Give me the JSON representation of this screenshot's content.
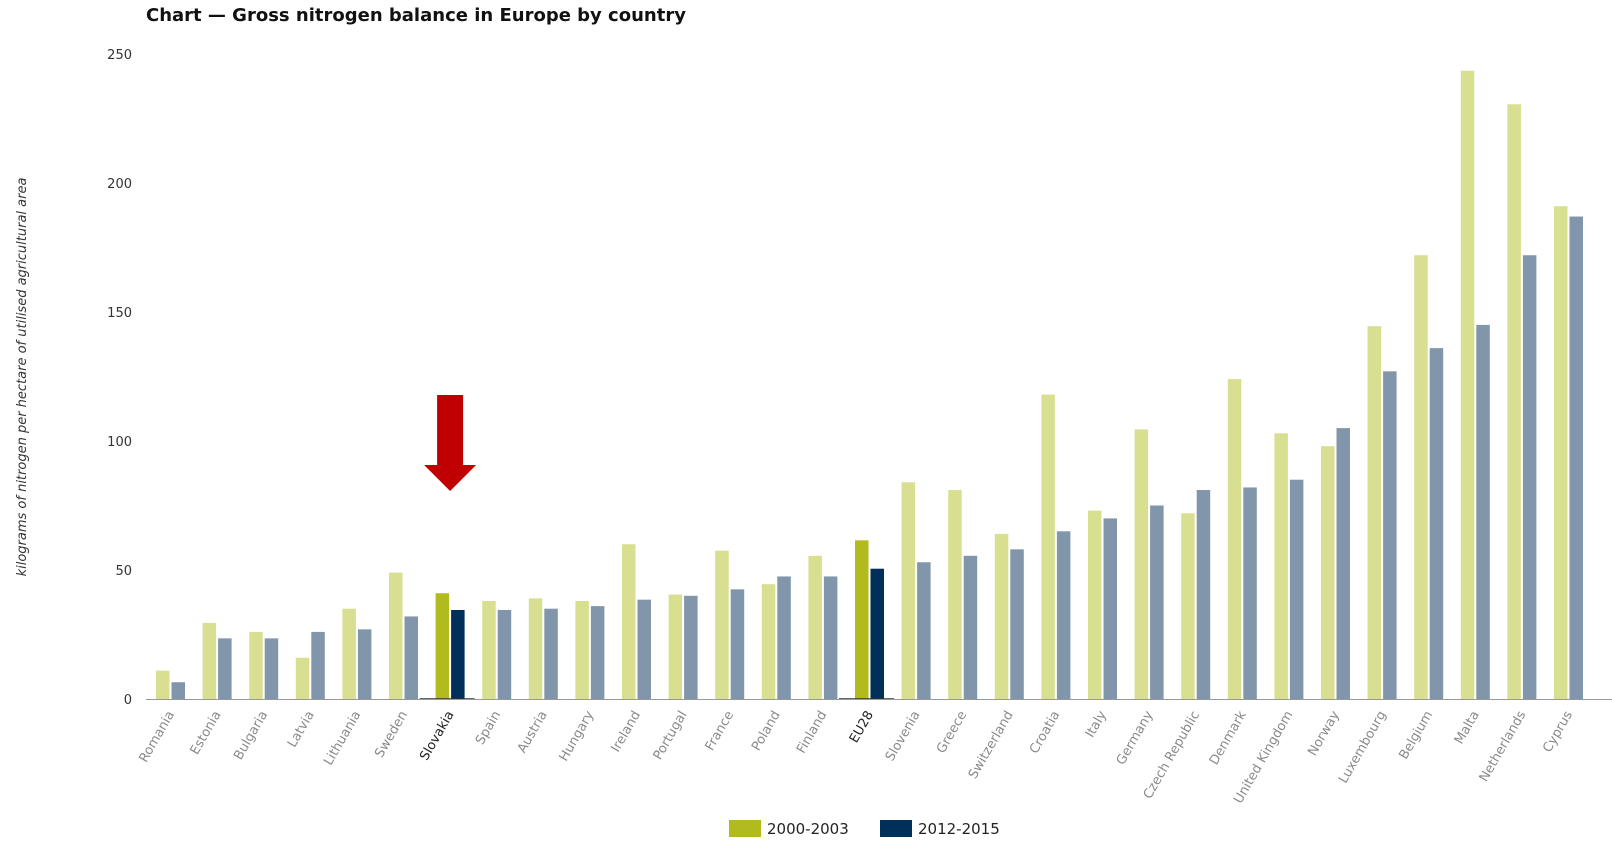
{
  "title": "Chart — Gross nitrogen balance in Europe by country",
  "chart_data": {
    "type": "bar",
    "title": "Chart — Gross nitrogen balance in Europe by country",
    "ylabel": "kilograms of nitrogen per hectare of utilised agricultural area",
    "xlabel": "",
    "ylim": [
      0,
      250
    ],
    "yticks": [
      0,
      50,
      100,
      150,
      200,
      250
    ],
    "grid": false,
    "legend_position": "bottom",
    "categories": [
      "Romania",
      "Estonia",
      "Bulgaria",
      "Latvia",
      "Lithuania",
      "Sweden",
      "Slovakia",
      "Spain",
      "Austria",
      "Hungary",
      "Ireland",
      "Portugal",
      "France",
      "Poland",
      "Finland",
      "EU28",
      "Slovenia",
      "Greece",
      "Switzerland",
      "Croatia",
      "Italy",
      "Germany",
      "Czech Republic",
      "Denmark",
      "United Kingdom",
      "Norway",
      "Luxembourg",
      "Belgium",
      "Malta",
      "Netherlands",
      "Cyprus"
    ],
    "highlighted": [
      "Slovakia",
      "EU28"
    ],
    "series": [
      {
        "name": "2000-2003",
        "color": "#b2bb1e",
        "muted_color": "#d8df91",
        "values": [
          11,
          29.5,
          26,
          16,
          35,
          49,
          41,
          38,
          39,
          38,
          60,
          40.5,
          57.5,
          44.5,
          55.5,
          61.5,
          84,
          81,
          64,
          118,
          73,
          104.5,
          72,
          124,
          103,
          98,
          144.5,
          172,
          243.5,
          230.5,
          191
        ]
      },
      {
        "name": "2012-2015",
        "color": "#00305a",
        "muted_color": "#8196ab",
        "values": [
          6.5,
          23.5,
          23.5,
          26,
          27,
          32,
          34.5,
          34.5,
          35,
          36,
          38.5,
          40,
          42.5,
          47.5,
          47.5,
          50.5,
          53,
          55.5,
          58,
          65,
          70,
          75,
          81,
          82,
          85,
          105,
          127,
          136,
          145,
          172,
          187
        ]
      }
    ],
    "annotations": [
      {
        "type": "arrow",
        "target": "Slovakia",
        "color": "#c00000"
      }
    ]
  }
}
